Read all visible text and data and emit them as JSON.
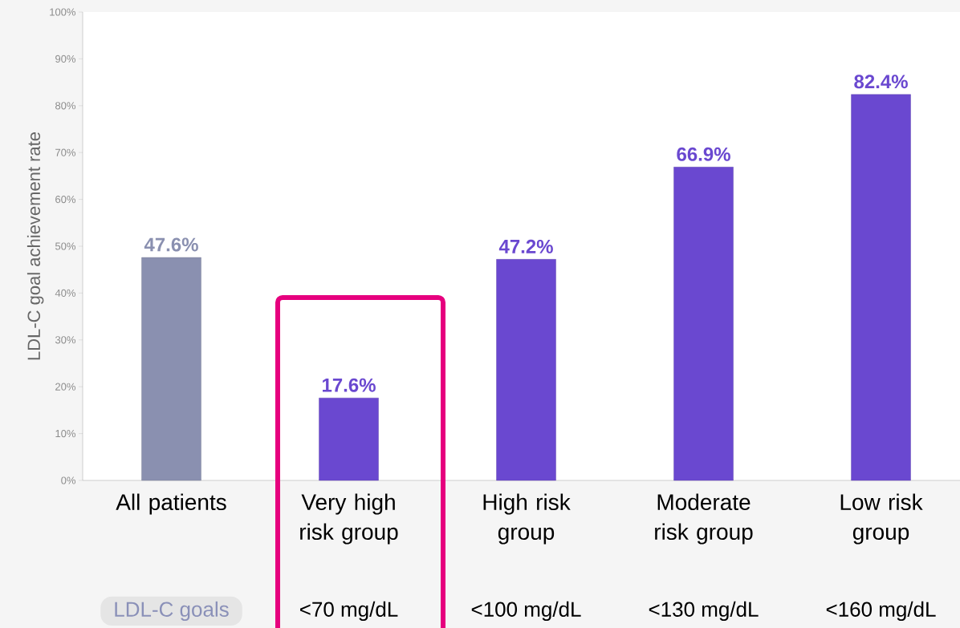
{
  "chart_data": {
    "type": "bar",
    "categories": [
      "All patients",
      "Very high risk group",
      "High risk group",
      "Moderate risk group",
      "Low risk group"
    ],
    "values": [
      47.6,
      17.6,
      47.2,
      66.9,
      82.4
    ],
    "colors": [
      "#8a90b0",
      "#6a48d0",
      "#6a48d0",
      "#6a48d0",
      "#6a48d0"
    ],
    "value_labels": [
      "47.6%",
      "17.6%",
      "47.2%",
      "66.9%",
      "82.4%"
    ],
    "ylabel": "LDL-C goal achievement rate",
    "ylim": [
      0,
      100
    ],
    "yticks": [
      {
        "value": 0,
        "label": "0%"
      },
      {
        "value": 10,
        "label": "10%"
      },
      {
        "value": 20,
        "label": "20%"
      },
      {
        "value": 30,
        "label": "30%"
      },
      {
        "value": 40,
        "label": "40%"
      },
      {
        "value": 50,
        "label": "50%"
      },
      {
        "value": 60,
        "label": "60%"
      },
      {
        "value": 70,
        "label": "70%"
      },
      {
        "value": 80,
        "label": "80%"
      },
      {
        "value": 90,
        "label": "90%"
      },
      {
        "value": 100,
        "label": "100%"
      }
    ],
    "annotations": [
      "LDL-C goals",
      "<70 mg/dL",
      "<100 mg/dL",
      "<130 mg/dL",
      "<160 mg/dL"
    ],
    "grid": false
  }
}
